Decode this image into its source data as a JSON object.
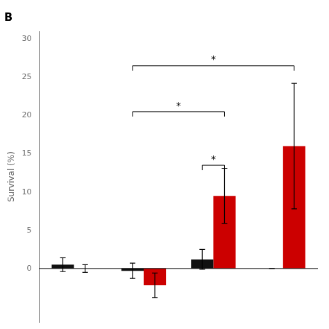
{
  "chart_data": {
    "type": "bar",
    "title": "B",
    "ylabel": "Survival (%)",
    "categories": [
      null,
      null,
      null,
      null
    ],
    "series": [
      {
        "color": "#111111",
        "values": [
          0.5,
          -0.3,
          1.2,
          0.0
        ],
        "errors": [
          0.9,
          1.0,
          1.3,
          0.0
        ]
      },
      {
        "color": "#cc0000",
        "values": [
          0.0,
          -2.2,
          9.5,
          16.0
        ],
        "errors": [
          0.5,
          1.6,
          3.6,
          8.2
        ]
      }
    ],
    "ylim": [
      -7,
      31
    ],
    "yticks": [
      0,
      5,
      10,
      15,
      20,
      25,
      30
    ],
    "grid": false,
    "tick_labels": "y",
    "annotations": [
      {
        "y": 0
      },
      {
        "text": "*",
        "y": 13.5,
        "x1": {
          "category": 2,
          "series": 0
        },
        "x2": {
          "category": 2,
          "series": 1
        }
      },
      {
        "text": "*",
        "y": 20.5,
        "x1": {
          "category": 1,
          "series": 0
        },
        "x2": {
          "category": 2,
          "series": 1
        }
      },
      {
        "text": "*",
        "y": 26.5,
        "x1": {
          "category": 1,
          "series": 0
        },
        "x2": {
          "category": 3,
          "series": 1
        }
      }
    ]
  }
}
